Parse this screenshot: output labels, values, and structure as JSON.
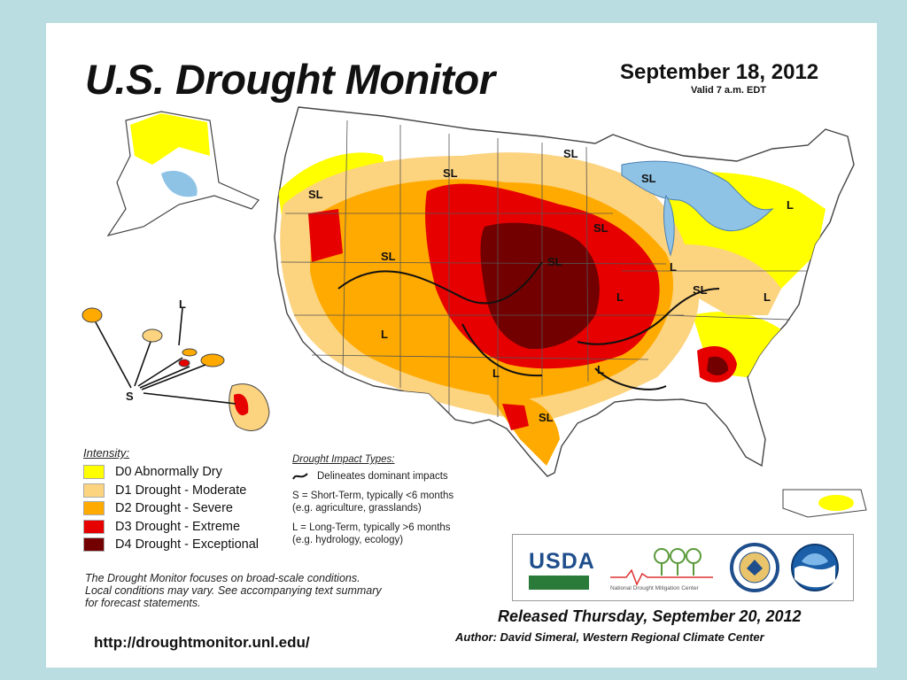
{
  "header": {
    "title": "U.S. Drought Monitor",
    "date": "September 18, 2012",
    "valid": "Valid 7 a.m. EDT"
  },
  "map_labels": {
    "short_term": "SL",
    "long_term": "L",
    "s_marker": "S",
    "regions": [
      "SL",
      "SL",
      "SL",
      "SL",
      "SL",
      "SL",
      "SL",
      "SL",
      "SL",
      "L",
      "L",
      "L",
      "L",
      "L",
      "L",
      "L",
      "L"
    ]
  },
  "legend": {
    "heading": "Intensity:",
    "items": [
      {
        "label": "D0 Abnormally Dry",
        "color": "#ffff00"
      },
      {
        "label": "D1 Drought - Moderate",
        "color": "#fcd37f"
      },
      {
        "label": "D2 Drought - Severe",
        "color": "#ffaa00"
      },
      {
        "label": "D3 Drought - Extreme",
        "color": "#e60000"
      },
      {
        "label": "D4 Drought - Exceptional",
        "color": "#730000"
      }
    ]
  },
  "impact": {
    "heading": "Drought Impact Types:",
    "delineates": "Delineates dominant impacts",
    "short_term_line1": "S = Short-Term, typically <6 months",
    "short_term_line2": "(e.g. agriculture, grasslands)",
    "long_term_line1": "L = Long-Term, typically >6 months",
    "long_term_line2": "(e.g. hydrology, ecology)"
  },
  "note": {
    "line1": "The Drought Monitor focuses on broad-scale conditions.",
    "line2": "Local conditions may vary. See accompanying text summary",
    "line3": "for forecast statements."
  },
  "footer": {
    "url": "http://droughtmonitor.unl.edu/",
    "released": "Released Thursday, September 20, 2012",
    "author": "Author: David Simeral, Western Regional Climate Center"
  },
  "logos": {
    "usda": "USDA",
    "ndmc": "National Drought Mitigation Center"
  },
  "colors": {
    "background": "#b9dde0",
    "water": "#8fc3e6"
  }
}
